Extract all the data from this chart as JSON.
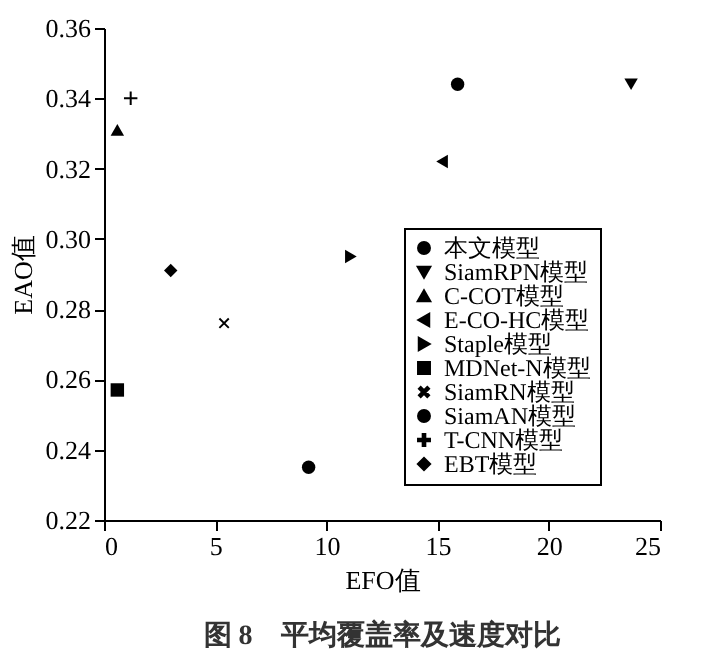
{
  "chart_data": {
    "type": "scatter",
    "xlabel": "EFO值",
    "ylabel": "EAO值",
    "annotations": [
      "图 8　平均覆盖率及速度对比"
    ],
    "xlim": [
      0,
      25
    ],
    "xticks": [
      0,
      5,
      10,
      15,
      20,
      25
    ],
    "ylim": [
      0.22,
      0.36
    ],
    "yticks": [
      {
        "value": 0.22,
        "label": "0.22"
      },
      {
        "value": 0.24,
        "label": "0.24"
      },
      {
        "value": 0.26,
        "label": "0.26"
      },
      {
        "value": 0.28,
        "label": "0.28"
      },
      {
        "value": 0.3,
        "label": "0.30"
      },
      {
        "value": 0.32,
        "label": "0.32"
      },
      {
        "value": 0.34,
        "label": "0.34"
      },
      {
        "value": 0.36,
        "label": "0.36"
      }
    ],
    "grid": false,
    "legend": "bottom right",
    "series": [
      {
        "name": "本文模型",
        "color": "#000000",
        "marker": "circle",
        "x": [
          15.9
        ],
        "values": [
          0.344
        ]
      },
      {
        "name": "SiamRPN模型",
        "color": "#000000",
        "marker": "triangle-down",
        "x": [
          23.7
        ],
        "values": [
          0.344
        ]
      },
      {
        "name": "C-COT模型",
        "color": "#000000",
        "marker": "triangle",
        "x": [
          0.6
        ],
        "values": [
          0.331
        ]
      },
      {
        "name": "E-CO-HC模型",
        "color": "#000000",
        "marker": "triangle-left",
        "x": [
          15.2
        ],
        "values": [
          0.322
        ]
      },
      {
        "name": "Staple模型",
        "color": "#000000",
        "marker": "triangle-right",
        "x": [
          11.1
        ],
        "values": [
          0.295
        ]
      },
      {
        "name": "MDNet-N模型",
        "color": "#000000",
        "marker": "square",
        "x": [
          0.6
        ],
        "values": [
          0.257
        ]
      },
      {
        "name": "SiamRN模型",
        "color": "#000000",
        "marker": "x",
        "x": [
          5.4
        ],
        "values": [
          0.276
        ]
      },
      {
        "name": "SiamAN模型",
        "color": "#000000",
        "marker": "circle",
        "x": [
          9.2
        ],
        "values": [
          0.235
        ]
      },
      {
        "name": "T-CNN模型",
        "color": "#000000",
        "marker": "cross",
        "x": [
          1.2
        ],
        "values": [
          0.34
        ]
      },
      {
        "name": "EBT模型",
        "color": "#000000",
        "marker": "diamond",
        "x": [
          3.0
        ],
        "values": [
          0.291
        ]
      }
    ]
  }
}
